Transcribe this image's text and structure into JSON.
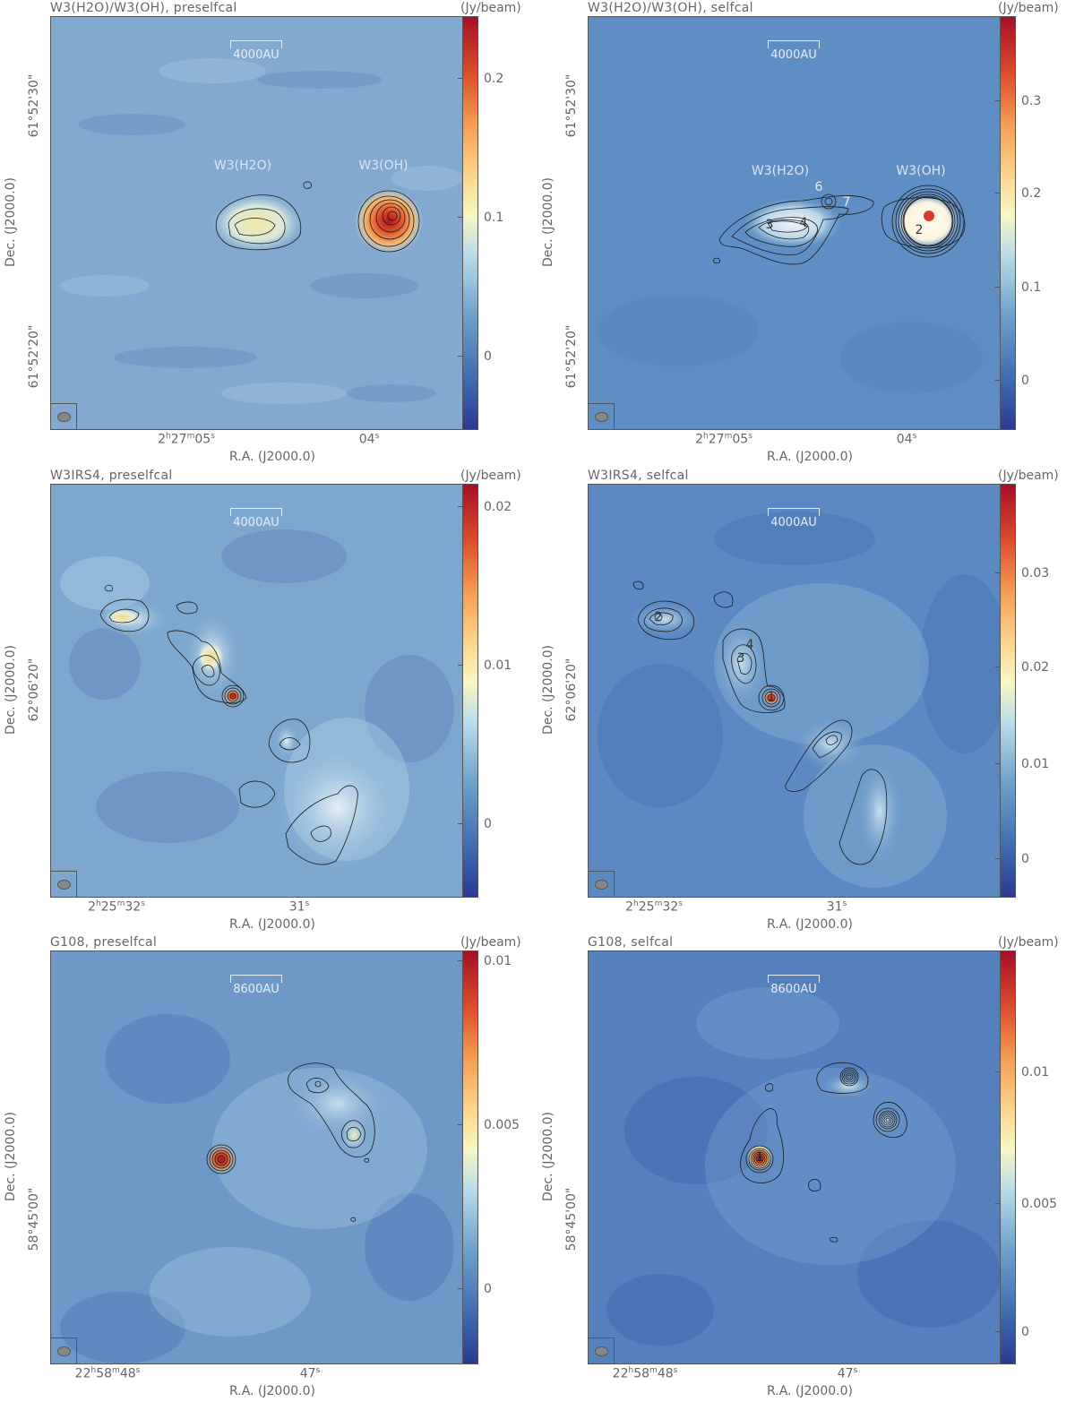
{
  "common": {
    "unit_label": "(Jy/beam)",
    "ylabel": "Dec. (J2000.0)",
    "xlabel": "R.A. (J2000.0)"
  },
  "panels": [
    {
      "title": "W3(H2O)/W3(OH), preselfcal",
      "scale_label": "4000AU",
      "ra_ticks": [
        {
          "h": "2",
          "m": "27",
          "s": "05"
        },
        {
          "s": "04"
        }
      ],
      "dec_ticks": [
        "61°52'30\"",
        "61°52'20\""
      ],
      "colorbar_ticks": [
        "0.2",
        "0.1",
        "0"
      ],
      "colorbar_range": [
        -0.04,
        0.25
      ],
      "source_labels": [
        "W3(H2O)",
        "W3(OH)"
      ],
      "peak_labels": []
    },
    {
      "title": "W3(H2O)/W3(OH), selfcal",
      "scale_label": "4000AU",
      "ra_ticks": [
        {
          "h": "2",
          "m": "27",
          "s": "05"
        },
        {
          "s": "04"
        }
      ],
      "dec_ticks": [
        "61°52'30\"",
        "61°52'20\""
      ],
      "colorbar_ticks": [
        "0.3",
        "0.2",
        "0.1",
        "0"
      ],
      "colorbar_range": [
        -0.05,
        0.38
      ],
      "source_labels": [
        "W3(H2O)",
        "W3(OH)"
      ],
      "peak_labels": [
        "6",
        "7",
        "3",
        "4",
        "2"
      ]
    },
    {
      "title": "W3IRS4, preselfcal",
      "scale_label": "4000AU",
      "ra_ticks": [
        {
          "h": "2",
          "m": "25",
          "s": "32"
        },
        {
          "s": "31"
        }
      ],
      "dec_ticks": [
        "62°06'20\""
      ],
      "colorbar_ticks": [
        "0.02",
        "0.01",
        "0"
      ],
      "colorbar_range": [
        -0.004,
        0.022
      ],
      "source_labels": [],
      "peak_labels": []
    },
    {
      "title": "W3IRS4, selfcal",
      "scale_label": "4000AU",
      "ra_ticks": [
        {
          "h": "2",
          "m": "25",
          "s": "32"
        },
        {
          "s": "31"
        }
      ],
      "dec_ticks": [
        "62°06'20\""
      ],
      "colorbar_ticks": [
        "0.03",
        "0.02",
        "0.01",
        "0"
      ],
      "colorbar_range": [
        -0.004,
        0.038
      ],
      "source_labels": [],
      "peak_labels": [
        "2",
        "4",
        "3",
        "1"
      ]
    },
    {
      "title": "G108, preselfcal",
      "scale_label": "8600AU",
      "ra_ticks": [
        {
          "h": "22",
          "m": "58",
          "s": "48"
        },
        {
          "s": "47"
        }
      ],
      "dec_ticks": [
        "58°45'00\""
      ],
      "colorbar_ticks": [
        "0.01",
        "0.005",
        "0"
      ],
      "colorbar_range": [
        -0.001,
        0.0103
      ],
      "source_labels": [],
      "peak_labels": []
    },
    {
      "title": "G108, selfcal",
      "scale_label": "8600AU",
      "ra_ticks": [
        {
          "h": "22",
          "m": "58",
          "s": "48"
        },
        {
          "s": "47"
        }
      ],
      "dec_ticks": [
        "58°45'00\""
      ],
      "colorbar_ticks": [
        "0.01",
        "0.005",
        "0"
      ],
      "colorbar_range": [
        -0.001,
        0.0143
      ],
      "source_labels": [],
      "peak_labels": [
        "1"
      ]
    }
  ]
}
